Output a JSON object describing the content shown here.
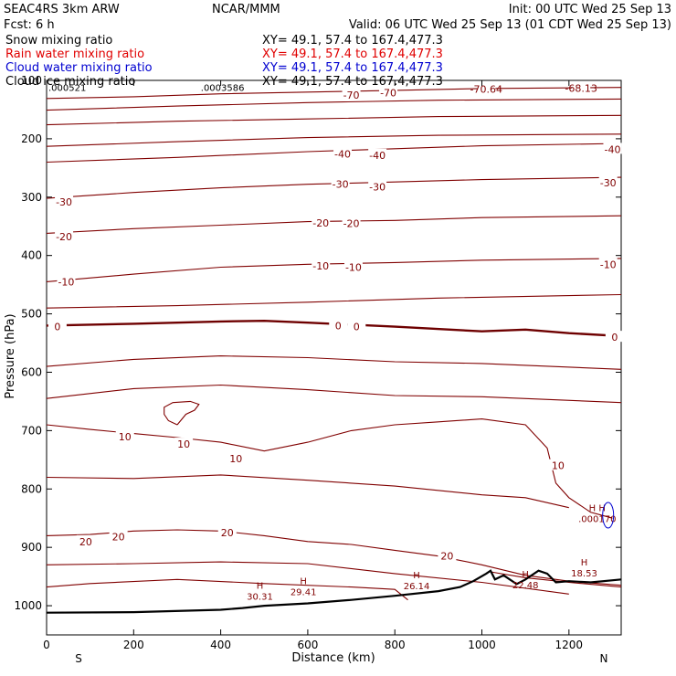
{
  "header": {
    "model": "SEAC4RS  3km ARW",
    "center": "NCAR/MMM",
    "init": "Init: 00 UTC Wed 25 Sep 13",
    "fcst": "Fcst:    6 h",
    "valid": "Valid: 06 UTC Wed 25 Sep 13 (01 CDT Wed 25 Sep 13)",
    "fields": [
      {
        "name": "Snow mixing ratio",
        "xy": "XY=  49.1, 57.4 to 167.4,477.3",
        "color": "#000000"
      },
      {
        "name": "Rain water mixing ratio",
        "xy": "XY=  49.1, 57.4 to 167.4,477.3",
        "color": "#e00000"
      },
      {
        "name": "Cloud water mixing ratio",
        "xy": "XY=  49.1, 57.4 to 167.4,477.3",
        "color": "#0000d0"
      },
      {
        "name": "Cloud ice mixing ratio",
        "xy": "XY=  49.1, 57.4 to 167.4,477.3",
        "color": "#000000"
      }
    ]
  },
  "chart_data": {
    "type": "line",
    "title": "",
    "xlabel": "Distance (km)",
    "ylabel": "Pressure (hPa)",
    "xlim": [
      0,
      1320
    ],
    "ylim": [
      1050,
      100
    ],
    "x_ticks": [
      0,
      200,
      400,
      600,
      800,
      1000,
      1200
    ],
    "y_ticks": [
      100,
      200,
      300,
      400,
      500,
      600,
      700,
      800,
      900,
      1000
    ],
    "x_end_labels": [
      "S",
      "N"
    ],
    "line_color": "#800000",
    "zero_line_color": "#6e0000",
    "terrain_color": "#000000",
    "isotherms": [
      {
        "label": "-70",
        "points": [
          [
            0,
            131
          ],
          [
            200,
            128
          ],
          [
            400,
            123
          ],
          [
            600,
            120
          ],
          [
            800,
            117
          ],
          [
            1000,
            114
          ],
          [
            1320,
            112
          ]
        ]
      },
      {
        "label": "",
        "points": [
          [
            0,
            151
          ],
          [
            300,
            144
          ],
          [
            600,
            138
          ],
          [
            900,
            134
          ],
          [
            1320,
            132
          ]
        ]
      },
      {
        "label": "",
        "points": [
          [
            0,
            176
          ],
          [
            300,
            170
          ],
          [
            600,
            166
          ],
          [
            900,
            162
          ],
          [
            1320,
            160
          ]
        ]
      },
      {
        "label": "",
        "points": [
          [
            0,
            213
          ],
          [
            300,
            205
          ],
          [
            600,
            198
          ],
          [
            900,
            194
          ],
          [
            1320,
            192
          ]
        ]
      },
      {
        "label": "-40",
        "points": [
          [
            0,
            240
          ],
          [
            300,
            232
          ],
          [
            600,
            222
          ],
          [
            800,
            217
          ],
          [
            1000,
            212
          ],
          [
            1320,
            208
          ]
        ]
      },
      {
        "label": "-30",
        "points": [
          [
            0,
            302
          ],
          [
            200,
            292
          ],
          [
            400,
            284
          ],
          [
            600,
            278
          ],
          [
            800,
            274
          ],
          [
            1000,
            270
          ],
          [
            1320,
            266
          ]
        ]
      },
      {
        "label": "-20",
        "points": [
          [
            0,
            362
          ],
          [
            200,
            354
          ],
          [
            400,
            348
          ],
          [
            600,
            342
          ],
          [
            800,
            340
          ],
          [
            1000,
            335
          ],
          [
            1320,
            332
          ]
        ]
      },
      {
        "label": "-10",
        "points": [
          [
            0,
            445
          ],
          [
            200,
            432
          ],
          [
            400,
            420
          ],
          [
            600,
            415
          ],
          [
            800,
            412
          ],
          [
            1000,
            408
          ],
          [
            1320,
            405
          ]
        ]
      },
      {
        "label": "",
        "points": [
          [
            0,
            490
          ],
          [
            300,
            486
          ],
          [
            600,
            480
          ],
          [
            900,
            473
          ],
          [
            1320,
            467
          ]
        ]
      },
      {
        "label": "0",
        "zero": true,
        "points": [
          [
            0,
            520
          ],
          [
            200,
            517
          ],
          [
            400,
            513
          ],
          [
            500,
            512
          ],
          [
            600,
            515
          ],
          [
            800,
            522
          ],
          [
            1000,
            530
          ],
          [
            1100,
            527
          ],
          [
            1200,
            533
          ],
          [
            1320,
            538
          ]
        ]
      },
      {
        "label": "",
        "points": [
          [
            0,
            590
          ],
          [
            200,
            578
          ],
          [
            400,
            572
          ],
          [
            600,
            575
          ],
          [
            800,
            582
          ],
          [
            1000,
            585
          ],
          [
            1320,
            595
          ]
        ]
      },
      {
        "label": "",
        "points": [
          [
            0,
            645
          ],
          [
            200,
            628
          ],
          [
            400,
            622
          ],
          [
            600,
            630
          ],
          [
            800,
            640
          ],
          [
            1000,
            642
          ],
          [
            1320,
            652
          ]
        ]
      },
      {
        "label": "10",
        "points": [
          [
            0,
            690
          ],
          [
            100,
            698
          ],
          [
            200,
            705
          ],
          [
            300,
            712
          ],
          [
            400,
            720
          ],
          [
            500,
            735
          ],
          [
            600,
            720
          ],
          [
            700,
            700
          ],
          [
            800,
            690
          ],
          [
            900,
            685
          ],
          [
            1000,
            680
          ],
          [
            1100,
            690
          ],
          [
            1150,
            730
          ],
          [
            1170,
            790
          ],
          [
            1200,
            815
          ],
          [
            1250,
            840
          ],
          [
            1300,
            850
          ]
        ]
      },
      {
        "label": "",
        "points": [
          [
            0,
            780
          ],
          [
            200,
            782
          ],
          [
            400,
            776
          ],
          [
            600,
            785
          ],
          [
            800,
            795
          ],
          [
            1000,
            810
          ],
          [
            1100,
            815
          ],
          [
            1200,
            832
          ]
        ]
      },
      {
        "label": "20",
        "points": [
          [
            0,
            880
          ],
          [
            100,
            878
          ],
          [
            200,
            872
          ],
          [
            300,
            870
          ],
          [
            400,
            872
          ],
          [
            500,
            880
          ],
          [
            600,
            890
          ],
          [
            700,
            895
          ],
          [
            800,
            905
          ],
          [
            900,
            915
          ],
          [
            1000,
            930
          ],
          [
            1100,
            948
          ],
          [
            1200,
            958
          ],
          [
            1320,
            965
          ]
        ]
      },
      {
        "label": "",
        "points": [
          [
            0,
            930
          ],
          [
            200,
            928
          ],
          [
            400,
            925
          ],
          [
            600,
            928
          ],
          [
            800,
            945
          ],
          [
            1000,
            960
          ],
          [
            1200,
            980
          ]
        ]
      },
      {
        "label": "",
        "points": [
          [
            0,
            968
          ],
          [
            100,
            962
          ],
          [
            300,
            955
          ],
          [
            500,
            962
          ],
          [
            700,
            968
          ],
          [
            800,
            972
          ],
          [
            830,
            990
          ]
        ]
      },
      {
        "label": "",
        "points": [
          [
            1020,
            942
          ],
          [
            1100,
            952
          ],
          [
            1200,
            960
          ],
          [
            1320,
            968
          ]
        ]
      }
    ],
    "loop_10": [
      [
        300,
        690
      ],
      [
        280,
        683
      ],
      [
        270,
        672
      ],
      [
        270,
        660
      ],
      [
        290,
        652
      ],
      [
        330,
        650
      ],
      [
        350,
        655
      ],
      [
        340,
        665
      ],
      [
        320,
        672
      ],
      [
        300,
        690
      ]
    ],
    "terrain": [
      [
        0,
        1012
      ],
      [
        200,
        1011
      ],
      [
        400,
        1007
      ],
      [
        450,
        1004
      ],
      [
        500,
        1000
      ],
      [
        600,
        996
      ],
      [
        700,
        990
      ],
      [
        800,
        983
      ],
      [
        900,
        975
      ],
      [
        950,
        968
      ],
      [
        980,
        958
      ],
      [
        1010,
        945
      ],
      [
        1020,
        940
      ],
      [
        1030,
        955
      ],
      [
        1050,
        948
      ],
      [
        1080,
        963
      ],
      [
        1100,
        955
      ],
      [
        1130,
        940
      ],
      [
        1150,
        945
      ],
      [
        1170,
        960
      ],
      [
        1200,
        958
      ],
      [
        1250,
        960
      ],
      [
        1320,
        955
      ]
    ],
    "contour_labels": [
      {
        "text": "-70",
        "x": 700,
        "y": 125
      },
      {
        "text": "-70",
        "x": 785,
        "y": 121
      },
      {
        "text": "-70.64",
        "x": 1010,
        "y": 115
      },
      {
        "text": "-68.13",
        "x": 1228,
        "y": 113
      },
      {
        "text": "-40",
        "x": 680,
        "y": 226
      },
      {
        "text": "-40",
        "x": 760,
        "y": 228
      },
      {
        "text": "-40",
        "x": 1300,
        "y": 218
      },
      {
        "text": "-30",
        "x": 40,
        "y": 308
      },
      {
        "text": "-30",
        "x": 675,
        "y": 278
      },
      {
        "text": "-30",
        "x": 760,
        "y": 282
      },
      {
        "text": "-30",
        "x": 1290,
        "y": 275
      },
      {
        "text": "-20",
        "x": 40,
        "y": 368
      },
      {
        "text": "-20",
        "x": 630,
        "y": 344
      },
      {
        "text": "-20",
        "x": 700,
        "y": 345
      },
      {
        "text": "-10",
        "x": 45,
        "y": 445
      },
      {
        "text": "-10",
        "x": 630,
        "y": 418
      },
      {
        "text": "-10",
        "x": 705,
        "y": 420
      },
      {
        "text": "-10",
        "x": 1290,
        "y": 415
      },
      {
        "text": "0",
        "x": 25,
        "y": 522
      },
      {
        "text": "0",
        "x": 670,
        "y": 520
      },
      {
        "text": "0",
        "x": 712,
        "y": 522
      },
      {
        "text": "0",
        "x": 1305,
        "y": 540
      },
      {
        "text": "10",
        "x": 180,
        "y": 710
      },
      {
        "text": "10",
        "x": 315,
        "y": 723
      },
      {
        "text": "10",
        "x": 435,
        "y": 748
      },
      {
        "text": "10",
        "x": 1175,
        "y": 760
      },
      {
        "text": "20",
        "x": 90,
        "y": 890
      },
      {
        "text": "20",
        "x": 165,
        "y": 882
      },
      {
        "text": "20",
        "x": 415,
        "y": 875
      },
      {
        "text": "20",
        "x": 920,
        "y": 915
      }
    ],
    "highs": [
      {
        "h": "H",
        "value": "30.31",
        "x": 490,
        "y": 990
      },
      {
        "h": "H",
        "value": "29.41",
        "x": 590,
        "y": 982
      },
      {
        "h": "H",
        "value": "26.14",
        "x": 850,
        "y": 972
      },
      {
        "h": "H",
        "value": "22.48",
        "x": 1100,
        "y": 970
      },
      {
        "h": "H",
        "value": "18.53",
        "x": 1235,
        "y": 950
      }
    ],
    "top_values": [
      {
        "text": ".000521",
        "x": 0,
        "y": 112
      },
      {
        "text": ".0003586",
        "x": 350,
        "y": 112
      }
    ],
    "right_h": {
      "text": "H H",
      "value": ".000170",
      "x": 1265,
      "y": 838
    }
  }
}
